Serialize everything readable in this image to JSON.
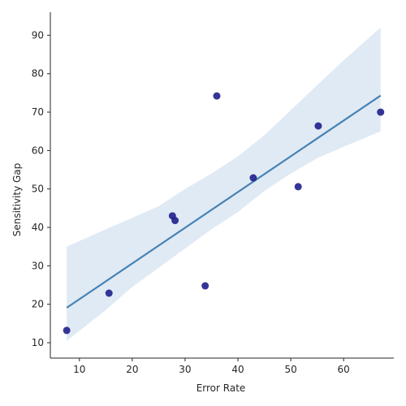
{
  "chart_data": {
    "type": "scatter",
    "xlabel": "Error Rate",
    "ylabel": "Sensitivity Gap",
    "xlim": [
      4.5,
      69.5
    ],
    "ylim": [
      6,
      96
    ],
    "x_ticks": [
      10,
      20,
      30,
      40,
      50,
      60
    ],
    "y_ticks": [
      10,
      20,
      30,
      40,
      50,
      60,
      70,
      80,
      90
    ],
    "grid": false,
    "points": [
      {
        "x": 7.6,
        "y": 13.2
      },
      {
        "x": 15.6,
        "y": 22.9
      },
      {
        "x": 27.6,
        "y": 43.0
      },
      {
        "x": 28.1,
        "y": 41.8
      },
      {
        "x": 33.8,
        "y": 24.8
      },
      {
        "x": 36.0,
        "y": 74.2
      },
      {
        "x": 42.9,
        "y": 52.9
      },
      {
        "x": 51.4,
        "y": 50.6
      },
      {
        "x": 55.2,
        "y": 66.4
      },
      {
        "x": 67.0,
        "y": 70.0
      }
    ],
    "regression": {
      "x": [
        7.6,
        67.0
      ],
      "y": [
        19.1,
        74.3
      ]
    },
    "confidence_band": {
      "x": [
        7.6,
        15,
        20,
        25,
        30,
        35,
        40,
        45,
        50,
        55,
        60,
        67.0
      ],
      "lower": [
        10.5,
        18.5,
        24.5,
        29.5,
        34.5,
        39.5,
        44.0,
        49.5,
        54.0,
        58.0,
        61.0,
        65.0
      ],
      "upper": [
        35.0,
        39.5,
        42.5,
        45.5,
        50.0,
        54.0,
        58.5,
        64.0,
        70.5,
        77.0,
        83.5,
        92.0
      ]
    },
    "colors": {
      "points": "#1f1f8c",
      "line": "#4682b4",
      "band": "#c6d8eb"
    }
  }
}
